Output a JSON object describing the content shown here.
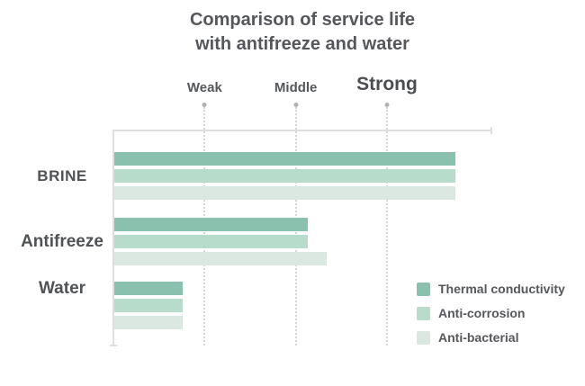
{
  "chart_data": {
    "type": "bar",
    "orientation": "horizontal",
    "title_lines": [
      "Comparison of service life",
      "with antifreeze and water"
    ],
    "categories": [
      "BRINE",
      "Antifreeze",
      "Water"
    ],
    "series": [
      {
        "name": "Thermal conductivity",
        "color": "#89c1ae",
        "values": [
          3.74,
          2.12,
          0.75
        ]
      },
      {
        "name": "Anti-corrosion",
        "color": "#b7dccc",
        "values": [
          3.74,
          2.12,
          0.75
        ]
      },
      {
        "name": "Anti-bacterial",
        "color": "#dbe7e1",
        "values": [
          3.74,
          2.33,
          0.75
        ]
      }
    ],
    "x_axis": {
      "tick_labels": [
        "Weak",
        "Middle",
        "Strong"
      ],
      "tick_values": [
        1,
        2,
        3
      ],
      "range": [
        0,
        4.15
      ],
      "emphasized_tick": "Strong"
    },
    "grid": "vertical-dotted",
    "legend_position": "bottom-right",
    "colors": {
      "text": "#55575a",
      "axis": "#dedede",
      "gridline": "#d7d7d7",
      "tick_dot": "#b2b2b2"
    }
  }
}
